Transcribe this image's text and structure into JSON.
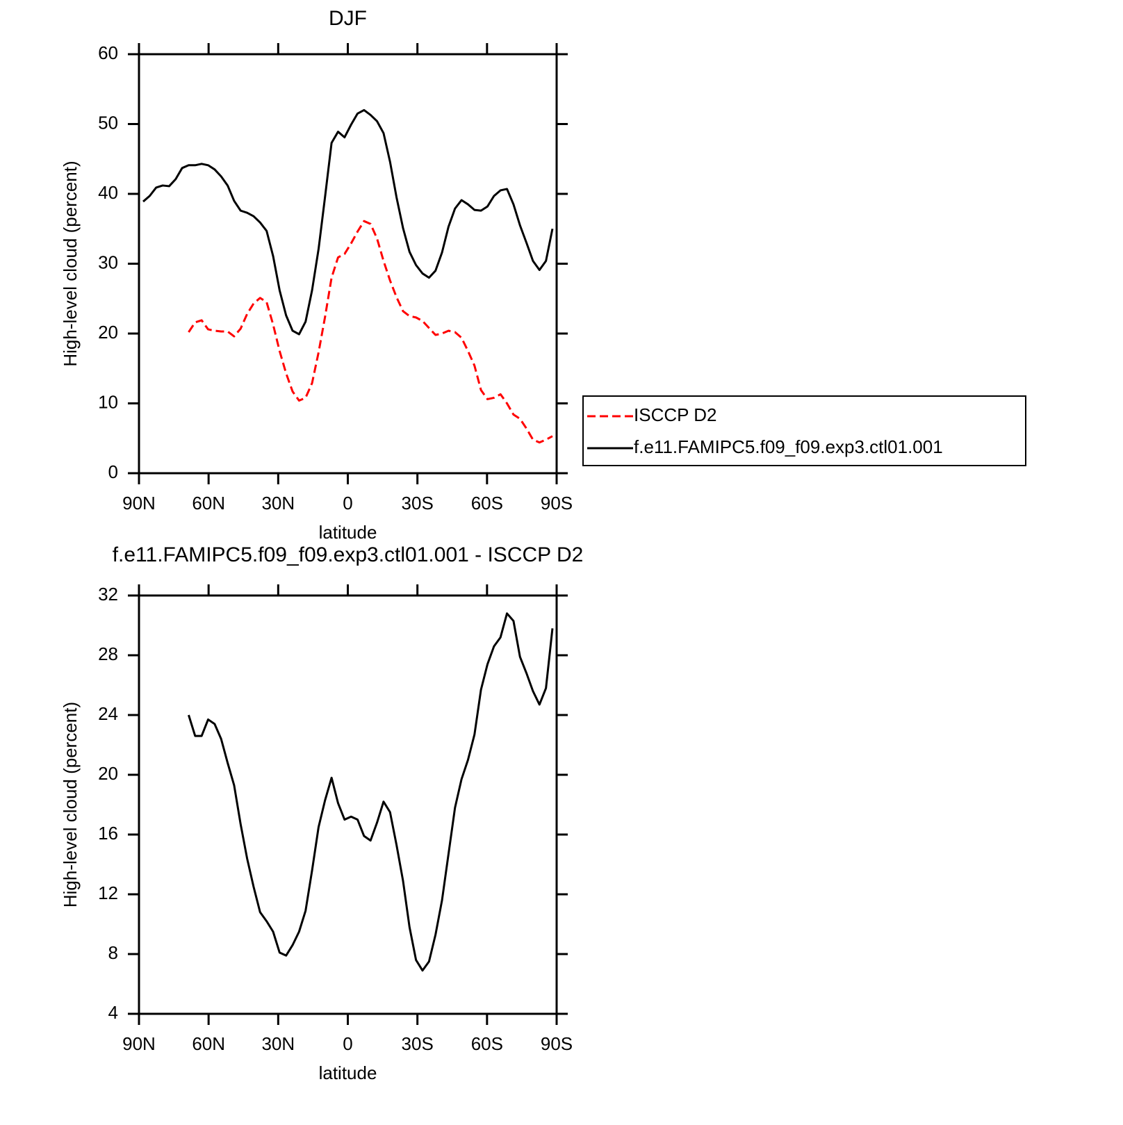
{
  "chart_data": [
    {
      "type": "line",
      "title": "DJF",
      "xlabel": "latitude",
      "ylabel": "High-level cloud (percent)",
      "x": [
        88.2,
        85.4,
        82.6,
        79.8,
        77,
        74.2,
        71.4,
        68.6,
        65.8,
        63,
        60.2,
        57.4,
        54.6,
        51.8,
        49,
        46.2,
        43.4,
        40.6,
        37.8,
        35,
        32.2,
        29.4,
        26.6,
        23.8,
        21,
        18.2,
        15.4,
        12.6,
        9.8,
        7,
        4.2,
        1.4,
        -1.4,
        -4.2,
        -7,
        -9.8,
        -12.6,
        -15.4,
        -18.2,
        -21,
        -23.8,
        -26.6,
        -29.4,
        -32.2,
        -35,
        -37.8,
        -40.6,
        -43.4,
        -46.2,
        -49,
        -51.8,
        -54.6,
        -57.4,
        -60.2,
        -63,
        -65.8,
        -68.6,
        -71.4,
        -74.2,
        -77,
        -79.8,
        -82.6,
        -85.4,
        -88.2
      ],
      "series": [
        {
          "name": "ISCCP D2",
          "color": "#ff0000",
          "linestyle": "dashed",
          "values": [
            null,
            null,
            null,
            null,
            null,
            null,
            null,
            20.2,
            21.6,
            21.9,
            20.6,
            20.4,
            20.3,
            20.3,
            19.6,
            20.7,
            22.8,
            24.3,
            25.1,
            24.5,
            21.3,
            17.5,
            14.3,
            11.7,
            10.4,
            10.8,
            12.9,
            17.3,
            22.4,
            28.0,
            30.9,
            31.4,
            32.9,
            34.6,
            36.1,
            35.7,
            33.6,
            30.4,
            27.6,
            25.2,
            23.2,
            22.5,
            22.3,
            21.8,
            20.8,
            19.8,
            20.0,
            20.4,
            20.2,
            19.4,
            17.5,
            15.4,
            11.9,
            10.6,
            10.8,
            11.3,
            10.0,
            8.4,
            7.8,
            6.4,
            4.8,
            4.4,
            4.8,
            5.3
          ]
        },
        {
          "name": "f.e11.FAMIPC5.f09_f09.exp3.ctl01.001",
          "color": "#000000",
          "linestyle": "solid",
          "values": [
            38.9,
            39.7,
            40.9,
            41.2,
            41.1,
            42.1,
            43.7,
            44.1,
            44.1,
            44.3,
            44.1,
            43.5,
            42.5,
            41.2,
            39.0,
            37.6,
            37.3,
            36.8,
            35.9,
            34.7,
            31.1,
            26.2,
            22.6,
            20.4,
            19.9,
            21.7,
            26.2,
            32.1,
            39.6,
            47.3,
            48.9,
            48.1,
            49.9,
            51.5,
            52.0,
            51.3,
            50.4,
            48.7,
            44.6,
            39.5,
            35.1,
            31.7,
            29.8,
            28.6,
            28.0,
            29.0,
            31.6,
            35.3,
            37.9,
            39.1,
            38.5,
            37.7,
            37.6,
            38.2,
            39.7,
            40.5,
            40.7,
            38.5,
            35.5,
            33.0,
            30.4,
            29.1,
            30.4,
            35.0
          ]
        }
      ],
      "xlim": [
        90,
        -90
      ],
      "xticks": [
        {
          "value": 90,
          "label": "90N"
        },
        {
          "value": 60,
          "label": "60N"
        },
        {
          "value": 30,
          "label": "30N"
        },
        0,
        {
          "value": -30,
          "label": "30S"
        },
        {
          "value": -60,
          "label": "60S"
        },
        {
          "value": -90,
          "label": "90S"
        }
      ],
      "ylim": [
        0,
        60
      ],
      "yticks": [
        0,
        10,
        20,
        30,
        40,
        50,
        60
      ],
      "legend": "right"
    },
    {
      "type": "line",
      "title": "f.e11.FAMIPC5.f09_f09.exp3.ctl01.001 - ISCCP D2",
      "xlabel": "latitude",
      "ylabel": "High-level cloud (percent)",
      "x": [
        68.6,
        65.8,
        63,
        60.2,
        57.4,
        54.6,
        51.8,
        49,
        46.2,
        43.4,
        40.6,
        37.8,
        35,
        32.2,
        29.4,
        26.6,
        23.8,
        21,
        18.2,
        15.4,
        12.6,
        9.8,
        7,
        4.2,
        1.4,
        -1.4,
        -4.2,
        -7,
        -9.8,
        -12.6,
        -15.4,
        -18.2,
        -21,
        -23.8,
        -26.6,
        -29.4,
        -32.2,
        -35,
        -37.8,
        -40.6,
        -43.4,
        -46.2,
        -49,
        -51.8,
        -54.6,
        -57.4,
        -60.2,
        -63,
        -65.8,
        -68.6,
        -71.4,
        -74.2,
        -77,
        -79.8,
        -82.6,
        -85.4,
        -88.2
      ],
      "series": [
        {
          "color": "#000000",
          "linestyle": "solid",
          "values": [
            24.0,
            22.6,
            22.6,
            23.7,
            23.4,
            22.4,
            20.8,
            19.3,
            16.7,
            14.4,
            12.5,
            10.8,
            10.2,
            9.5,
            8.1,
            7.9,
            8.6,
            9.5,
            10.9,
            13.6,
            16.5,
            18.3,
            19.8,
            18.1,
            17.0,
            17.2,
            17.0,
            15.9,
            15.6,
            16.8,
            18.2,
            17.5,
            15.3,
            12.9,
            9.8,
            7.6,
            6.9,
            7.5,
            9.3,
            11.6,
            14.7,
            17.8,
            19.7,
            21.0,
            22.7,
            25.7,
            27.4,
            28.6,
            29.2,
            30.8,
            30.3,
            27.9,
            26.8,
            25.6,
            24.7,
            25.8,
            29.8
          ]
        }
      ],
      "xlim": [
        90,
        -90
      ],
      "xticks": [
        {
          "value": 90,
          "label": "90N"
        },
        {
          "value": 60,
          "label": "60N"
        },
        {
          "value": 30,
          "label": "30N"
        },
        0,
        {
          "value": -30,
          "label": "30S"
        },
        {
          "value": -60,
          "label": "60S"
        },
        {
          "value": -90,
          "label": "90S"
        }
      ],
      "ylim": [
        4,
        32
      ],
      "yticks": [
        4,
        8,
        12,
        16,
        20,
        24,
        28,
        32
      ]
    }
  ]
}
